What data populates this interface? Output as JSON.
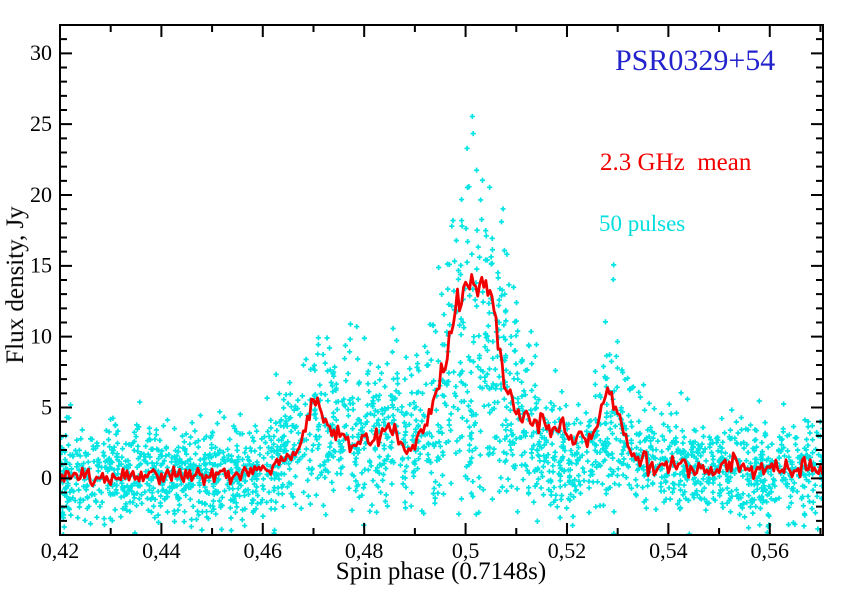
{
  "chart_data": {
    "type": "scatter",
    "title": "PSR0329+54",
    "title_color": "#2323cd",
    "xlabel": "Spin phase (0.7148s)",
    "ylabel": "Flux density, Jy",
    "xlim": [
      0.42,
      0.5705
    ],
    "ylim": [
      -4,
      32
    ],
    "grid": false,
    "frame_color": "#000000",
    "background": "#ffffff",
    "legend_position": "inside-top-right",
    "legend": [
      {
        "text": "2.3 GHz  mean",
        "color": "#f20000"
      },
      {
        "text": "50 pulses",
        "color": "#00dede"
      }
    ],
    "x_ticks": {
      "values": [
        0.42,
        0.44,
        0.46,
        0.48,
        0.5,
        0.52,
        0.54,
        0.56
      ],
      "labels": [
        "0,42",
        "0,44",
        "0,46",
        "0,48",
        "0,5",
        "0,52",
        "0,54",
        "0,56"
      ],
      "minor_step": 0.01
    },
    "y_ticks": {
      "values": [
        0,
        5,
        10,
        15,
        20,
        25,
        30
      ],
      "labels": [
        "0",
        "5",
        "10",
        "15",
        "20",
        "25",
        "30"
      ],
      "minor_step": 1
    },
    "series": [
      {
        "name": "50 pulses",
        "type": "scatter",
        "marker": "plus",
        "marker_size": 5.2,
        "marker_stroke": 1.7,
        "color": "#00e4e4",
        "model": {
          "n": 2600,
          "seed": 7,
          "noise_mean": 0.3,
          "noise_sigma": 1.7,
          "height_power": 1.6,
          "pulse_envelope": [
            [
              0.42,
              0
            ],
            [
              0.455,
              0
            ],
            [
              0.458,
              0.5
            ],
            [
              0.462,
              2
            ],
            [
              0.466,
              6
            ],
            [
              0.469,
              11
            ],
            [
              0.472,
              8
            ],
            [
              0.475,
              8.5
            ],
            [
              0.478,
              10
            ],
            [
              0.482,
              6
            ],
            [
              0.4855,
              9
            ],
            [
              0.489,
              6
            ],
            [
              0.492,
              9
            ],
            [
              0.494,
              12
            ],
            [
              0.496,
              14
            ],
            [
              0.498,
              21
            ],
            [
              0.5,
              24.5
            ],
            [
              0.502,
              24
            ],
            [
              0.504,
              22
            ],
            [
              0.506,
              19
            ],
            [
              0.508,
              15
            ],
            [
              0.51,
              12
            ],
            [
              0.513,
              8
            ],
            [
              0.516,
              5
            ],
            [
              0.519,
              3.5
            ],
            [
              0.522,
              3.5
            ],
            [
              0.525,
              5
            ],
            [
              0.527,
              8
            ],
            [
              0.529,
              13
            ],
            [
              0.531,
              7.5
            ],
            [
              0.533,
              4.5
            ],
            [
              0.536,
              2.5
            ],
            [
              0.54,
              1.5
            ],
            [
              0.545,
              0.8
            ],
            [
              0.55,
              0.3
            ],
            [
              0.555,
              0
            ],
            [
              0.56,
              0.5
            ],
            [
              0.5705,
              0.5
            ]
          ]
        }
      },
      {
        "name": "2.3 GHz mean",
        "type": "line",
        "color": "#f20000",
        "line_width": 2.8,
        "phase_step": 0.0004,
        "jitter_base": 0.3,
        "jitter_slope": 0.028,
        "jitter_seed": 21,
        "profile": [
          [
            0.42,
            0.1
          ],
          [
            0.424,
            0.3
          ],
          [
            0.427,
            -0.1
          ],
          [
            0.431,
            0.2
          ],
          [
            0.435,
            0.1
          ],
          [
            0.439,
            0.3
          ],
          [
            0.443,
            0.0
          ],
          [
            0.447,
            0.2
          ],
          [
            0.451,
            0.3
          ],
          [
            0.4556,
            0.3
          ],
          [
            0.459,
            0.5
          ],
          [
            0.4616,
            0.8
          ],
          [
            0.4642,
            1.6
          ],
          [
            0.4655,
            1.5
          ],
          [
            0.4665,
            1.9
          ],
          [
            0.4675,
            2.6
          ],
          [
            0.4689,
            4.2
          ],
          [
            0.4699,
            5.4
          ],
          [
            0.4715,
            4.5
          ],
          [
            0.4735,
            3.4
          ],
          [
            0.4754,
            2.8
          ],
          [
            0.4774,
            2.3
          ],
          [
            0.4794,
            2.6
          ],
          [
            0.4814,
            2.9
          ],
          [
            0.4834,
            3.3
          ],
          [
            0.4847,
            3.8
          ],
          [
            0.4863,
            3.2
          ],
          [
            0.4879,
            2.0
          ],
          [
            0.4893,
            2.3
          ],
          [
            0.4913,
            3.2
          ],
          [
            0.4933,
            4.8
          ],
          [
            0.4946,
            6.3
          ],
          [
            0.4962,
            8.8
          ],
          [
            0.4972,
            10.8
          ],
          [
            0.4982,
            12.5
          ],
          [
            0.4996,
            13.6
          ],
          [
            0.501,
            14.1
          ],
          [
            0.5025,
            14.2
          ],
          [
            0.5042,
            13.8
          ],
          [
            0.5051,
            12.5
          ],
          [
            0.5061,
            10.5
          ],
          [
            0.5071,
            8.0
          ],
          [
            0.5081,
            6.5
          ],
          [
            0.5091,
            5.3
          ],
          [
            0.5101,
            4.6
          ],
          [
            0.512,
            4.2
          ],
          [
            0.514,
            3.7
          ],
          [
            0.516,
            3.3
          ],
          [
            0.518,
            3.1
          ],
          [
            0.5194,
            3.4
          ],
          [
            0.5215,
            2.8
          ],
          [
            0.5235,
            2.9
          ],
          [
            0.5255,
            3.5
          ],
          [
            0.527,
            4.9
          ],
          [
            0.5283,
            6.3
          ],
          [
            0.53,
            4.6
          ],
          [
            0.5315,
            2.9
          ],
          [
            0.533,
            1.7
          ],
          [
            0.535,
            1.1
          ],
          [
            0.538,
            0.8
          ],
          [
            0.542,
            1.0
          ],
          [
            0.546,
            0.5
          ],
          [
            0.55,
            0.7
          ],
          [
            0.553,
            1.2
          ],
          [
            0.556,
            0.4
          ],
          [
            0.56,
            0.6
          ],
          [
            0.564,
            0.5
          ],
          [
            0.567,
            0.9
          ],
          [
            0.5705,
            0.3
          ]
        ]
      }
    ]
  }
}
